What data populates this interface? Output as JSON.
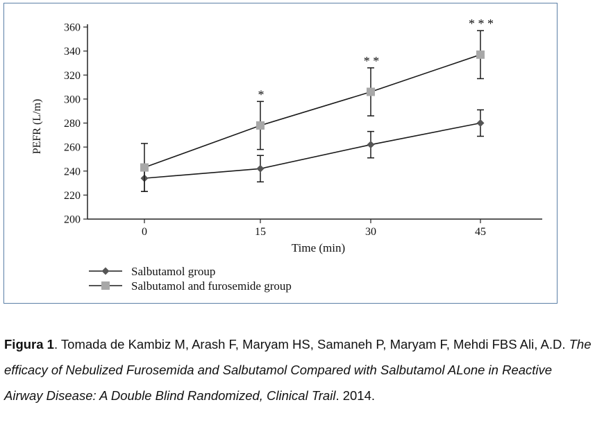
{
  "chart_data": {
    "type": "line",
    "xlabel": "Time (min)",
    "ylabel": "PEFR (L/m)",
    "x": [
      0,
      15,
      30,
      45
    ],
    "x_tick_labels": [
      "0",
      "15",
      "30",
      "45"
    ],
    "ylim": [
      200,
      360
    ],
    "y_ticks": [
      200,
      220,
      240,
      260,
      280,
      300,
      320,
      340,
      360
    ],
    "y_tick_labels": [
      "200",
      "220",
      "240",
      "260",
      "280",
      "300",
      "320",
      "340",
      "360"
    ],
    "grid": false,
    "legend_position": "bottom-left",
    "series": [
      {
        "name": "Salbutamol group",
        "marker": "diamond",
        "color": "#555555",
        "values": [
          234,
          242,
          262,
          280
        ],
        "error": [
          11,
          11,
          11,
          11
        ]
      },
      {
        "name": "Salbutamol and furosemide group",
        "marker": "square",
        "color": "#a8a8a8",
        "values": [
          243,
          278,
          306,
          337
        ],
        "error": [
          20,
          20,
          20,
          20
        ]
      }
    ],
    "annotations": [
      {
        "x": 15,
        "y": 298,
        "text": "*"
      },
      {
        "x": 30,
        "y": 326,
        "text": "* *"
      },
      {
        "x": 45,
        "y": 357,
        "text": "* * *"
      }
    ]
  },
  "caption": {
    "label": "Figura 1",
    "authors": ". Tomada de Kambiz M, Arash F, Maryam HS, Samaneh P, Maryam F, Mehdi FBS Ali, A.D. ",
    "title": "The efficacy of Nebulized Furosemida and Salbutamol Compared with Salbutamol ALone in Reactive Airway Disease: A Double Blind Randomized, Clinical Trail",
    "year": ". 2014."
  }
}
